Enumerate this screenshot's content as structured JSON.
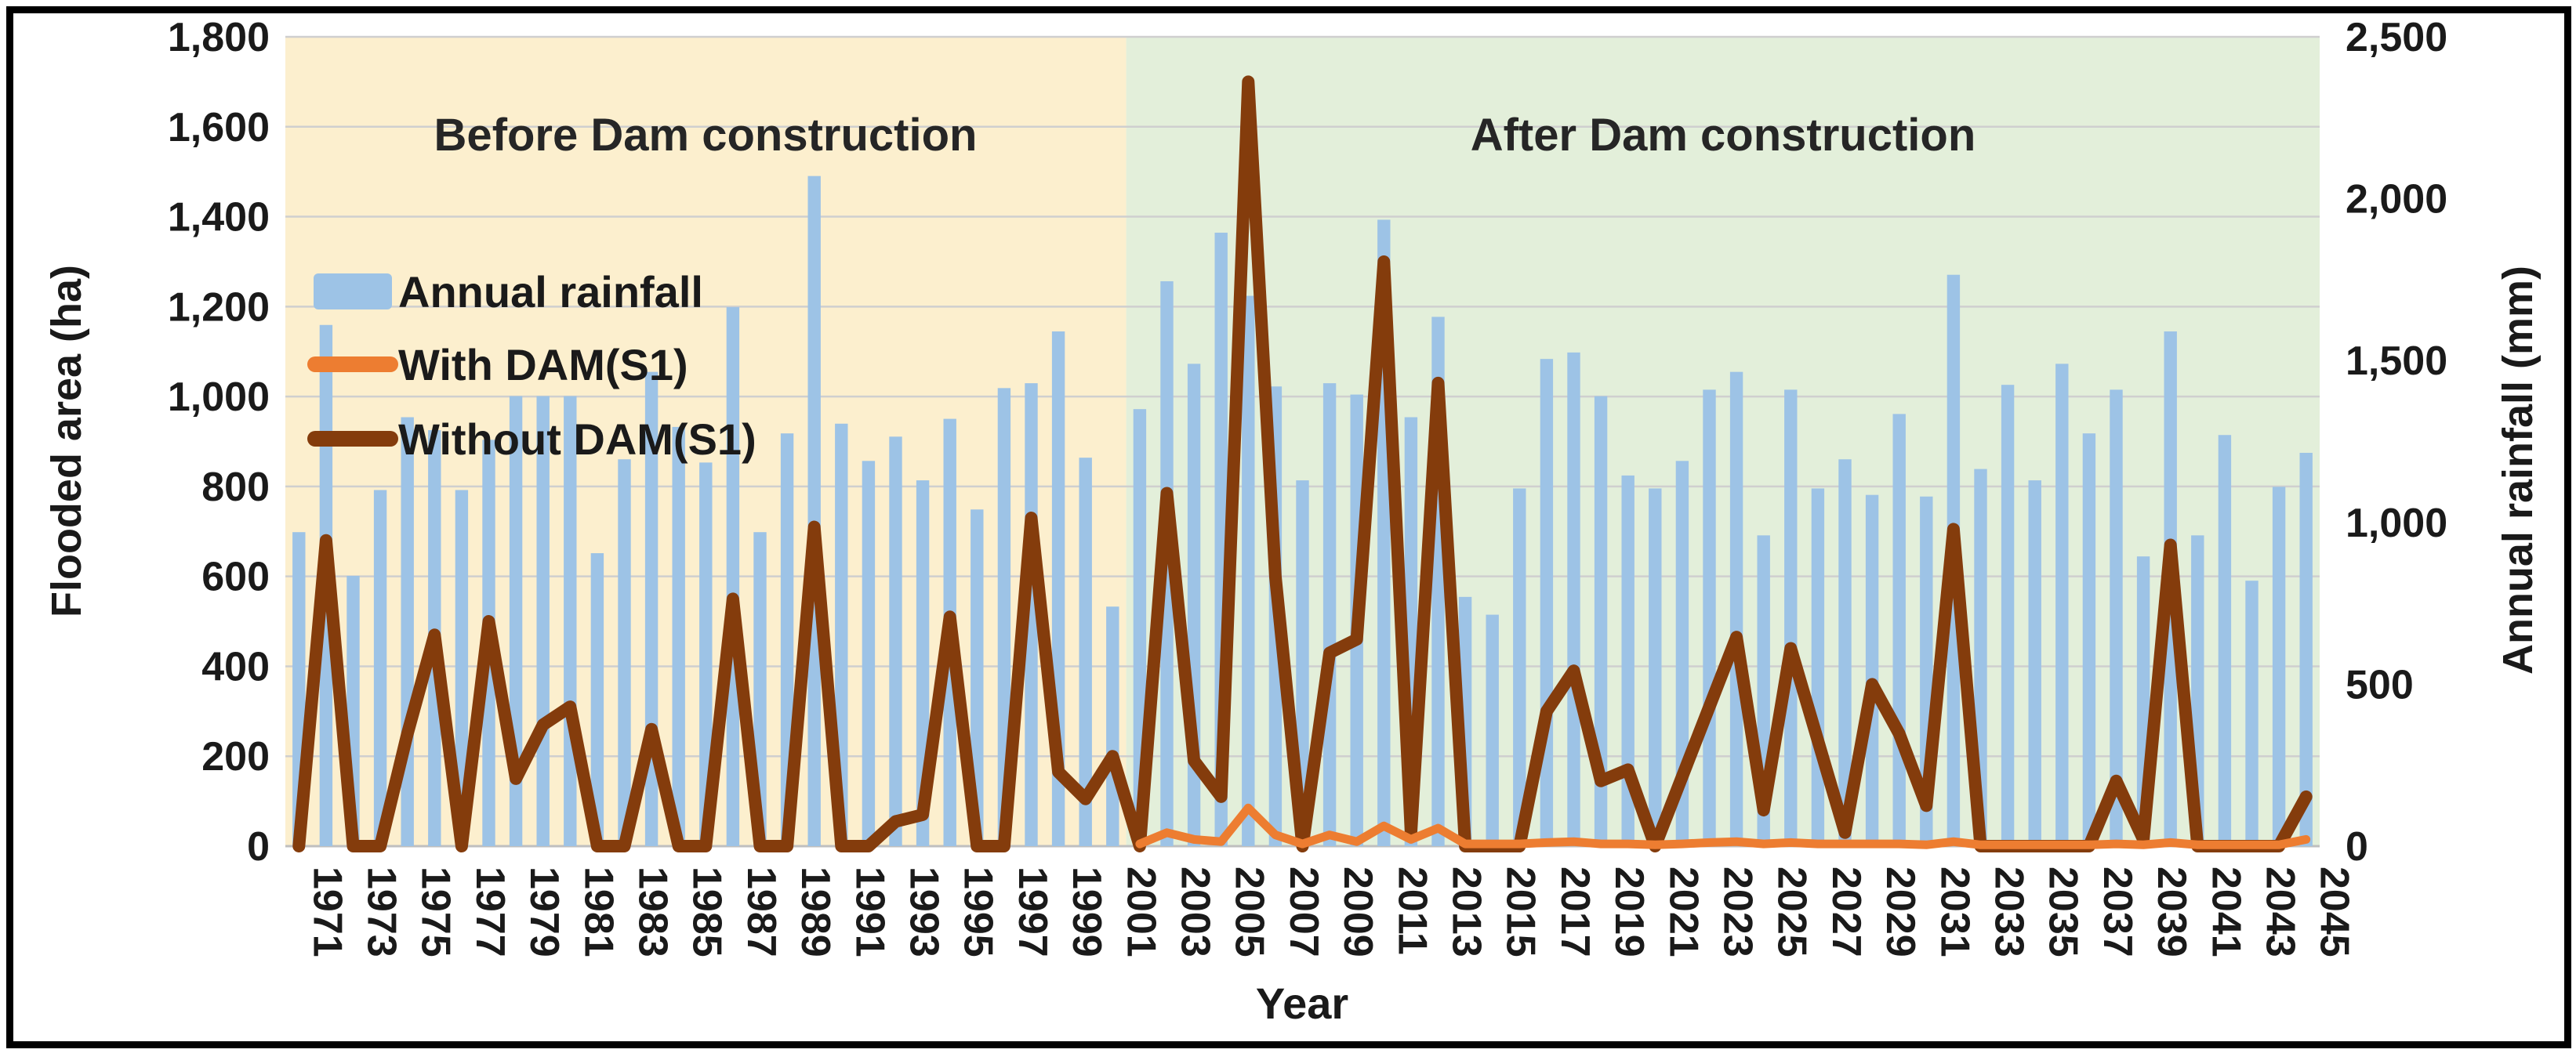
{
  "chart_data": {
    "type": "bar",
    "combo": "bars + two lines",
    "x": [
      1971,
      1972,
      1973,
      1974,
      1975,
      1976,
      1977,
      1978,
      1979,
      1980,
      1981,
      1982,
      1983,
      1984,
      1985,
      1986,
      1987,
      1988,
      1989,
      1990,
      1991,
      1992,
      1993,
      1994,
      1995,
      1996,
      1997,
      1998,
      1999,
      2000,
      2001,
      2002,
      2003,
      2004,
      2005,
      2006,
      2007,
      2008,
      2009,
      2010,
      2011,
      2012,
      2013,
      2014,
      2015,
      2016,
      2017,
      2018,
      2019,
      2020,
      2021,
      2022,
      2023,
      2024,
      2025,
      2026,
      2027,
      2028,
      2029,
      2030,
      2031,
      2032,
      2033,
      2034,
      2035,
      2036,
      2037,
      2038,
      2039,
      2040,
      2041,
      2042,
      2043,
      2044,
      2045
    ],
    "series": [
      {
        "name": "Annual rainfall",
        "type": "bar",
        "axis": "right",
        "unit": "mm",
        "color": "#9DC3E6",
        "values": [
          970,
          1610,
          835,
          1100,
          1325,
          1285,
          1100,
          1255,
          1390,
          1390,
          1390,
          905,
          1195,
          1465,
          1295,
          1185,
          1665,
          970,
          1275,
          2070,
          1305,
          1190,
          1265,
          1130,
          1320,
          1040,
          1415,
          1430,
          1590,
          1200,
          740,
          1350,
          1745,
          1490,
          1895,
          1700,
          1420,
          1130,
          1430,
          1395,
          1935,
          1325,
          1635,
          770,
          715,
          1105,
          1505,
          1525,
          1390,
          1145,
          1105,
          1190,
          1410,
          1465,
          960,
          1410,
          1105,
          1195,
          1085,
          1335,
          1080,
          1765,
          1165,
          1425,
          1130,
          1490,
          1275,
          1410,
          895,
          1590,
          960,
          1270,
          820,
          1110,
          1215
        ]
      },
      {
        "name": "With DAM(S1)",
        "type": "line",
        "axis": "left",
        "unit": "ha",
        "color": "#ED7D31",
        "values": [
          null,
          null,
          null,
          null,
          null,
          null,
          null,
          null,
          null,
          null,
          null,
          null,
          null,
          null,
          null,
          null,
          null,
          null,
          null,
          null,
          null,
          null,
          null,
          null,
          null,
          null,
          null,
          null,
          null,
          null,
          null,
          5,
          30,
          15,
          10,
          85,
          25,
          5,
          25,
          10,
          45,
          15,
          40,
          5,
          5,
          5,
          8,
          10,
          5,
          5,
          3,
          5,
          8,
          10,
          5,
          8,
          5,
          5,
          5,
          5,
          3,
          10,
          3,
          3,
          3,
          3,
          3,
          5,
          3,
          8,
          3,
          3,
          3,
          3,
          15
        ]
      },
      {
        "name": "Without DAM(S1)",
        "type": "line",
        "axis": "left",
        "unit": "ha",
        "color": "#843C0C",
        "values": [
          0,
          680,
          0,
          0,
          250,
          470,
          0,
          500,
          150,
          270,
          310,
          0,
          0,
          260,
          0,
          0,
          550,
          0,
          0,
          710,
          0,
          0,
          55,
          70,
          510,
          0,
          0,
          730,
          165,
          105,
          200,
          0,
          785,
          190,
          110,
          1700,
          600,
          0,
          430,
          460,
          1300,
          30,
          1030,
          0,
          0,
          0,
          300,
          390,
          145,
          170,
          0,
          155,
          310,
          465,
          80,
          440,
          235,
          30,
          360,
          250,
          90,
          705,
          0,
          0,
          0,
          0,
          0,
          145,
          15,
          670,
          0,
          0,
          0,
          0,
          110
        ]
      }
    ],
    "regions": [
      {
        "label": "Before Dam construction",
        "from": 1971,
        "to": 2001,
        "color": "#FCEFCE"
      },
      {
        "label": "After Dam construction",
        "from": 2002,
        "to": 2045,
        "color": "#E3EFDA"
      }
    ],
    "xlabel": "Year",
    "ylabel_left": "Flooded area (ha)",
    "ylabel_right": "Annual rainfall (mm)",
    "ylim_left": [
      0,
      1800
    ],
    "ylim_right": [
      0,
      2500
    ],
    "left_ticks": [
      "0",
      "200",
      "400",
      "600",
      "800",
      "1,000",
      "1,200",
      "1,400",
      "1,600",
      "1,800"
    ],
    "right_ticks": [
      "0",
      "500",
      "1,000",
      "1,500",
      "2,000",
      "2,500"
    ],
    "x_tick_years": [
      1971,
      1973,
      1975,
      1977,
      1979,
      1981,
      1983,
      1985,
      1987,
      1989,
      1991,
      1993,
      1995,
      1997,
      1999,
      2001,
      2003,
      2005,
      2007,
      2009,
      2011,
      2013,
      2015,
      2017,
      2019,
      2021,
      2023,
      2025,
      2027,
      2029,
      2031,
      2033,
      2035,
      2037,
      2039,
      2041,
      2043,
      2045
    ],
    "grid": true,
    "gridline_color": "#CFCFCF",
    "baseline_color": "#BFBFBF",
    "legend_position": "top-left-inside"
  },
  "page": {
    "background": "#FFFFFF",
    "border_color": "#000000"
  }
}
